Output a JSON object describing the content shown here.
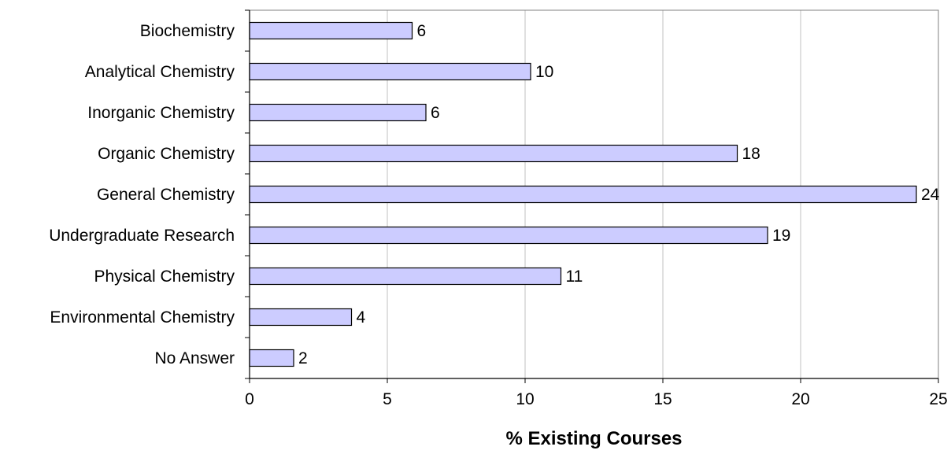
{
  "chart_data": {
    "type": "bar",
    "orientation": "horizontal",
    "categories": [
      "Biochemistry",
      "Analytical Chemistry",
      "Inorganic Chemistry",
      "Organic Chemistry",
      "General Chemistry",
      "Undergraduate Research",
      "Physical Chemistry",
      "Environmental Chemistry",
      "No Answer"
    ],
    "values": [
      5.9,
      10.2,
      6.4,
      17.7,
      24.2,
      18.8,
      11.3,
      3.7,
      1.6
    ],
    "data_labels": [
      "6",
      "10",
      "6",
      "18",
      "24",
      "19",
      "11",
      "4",
      "2"
    ],
    "xlabel": "% Existing Courses",
    "ylabel": "",
    "xlim": [
      0,
      25
    ],
    "xticks": [
      0,
      5,
      10,
      15,
      20,
      25
    ],
    "grid": "vertical",
    "bar_color": "#ccccff",
    "bar_edge_color": "#000000",
    "grid_color": "#c0c0c0",
    "plot_border_color": "#808080"
  }
}
